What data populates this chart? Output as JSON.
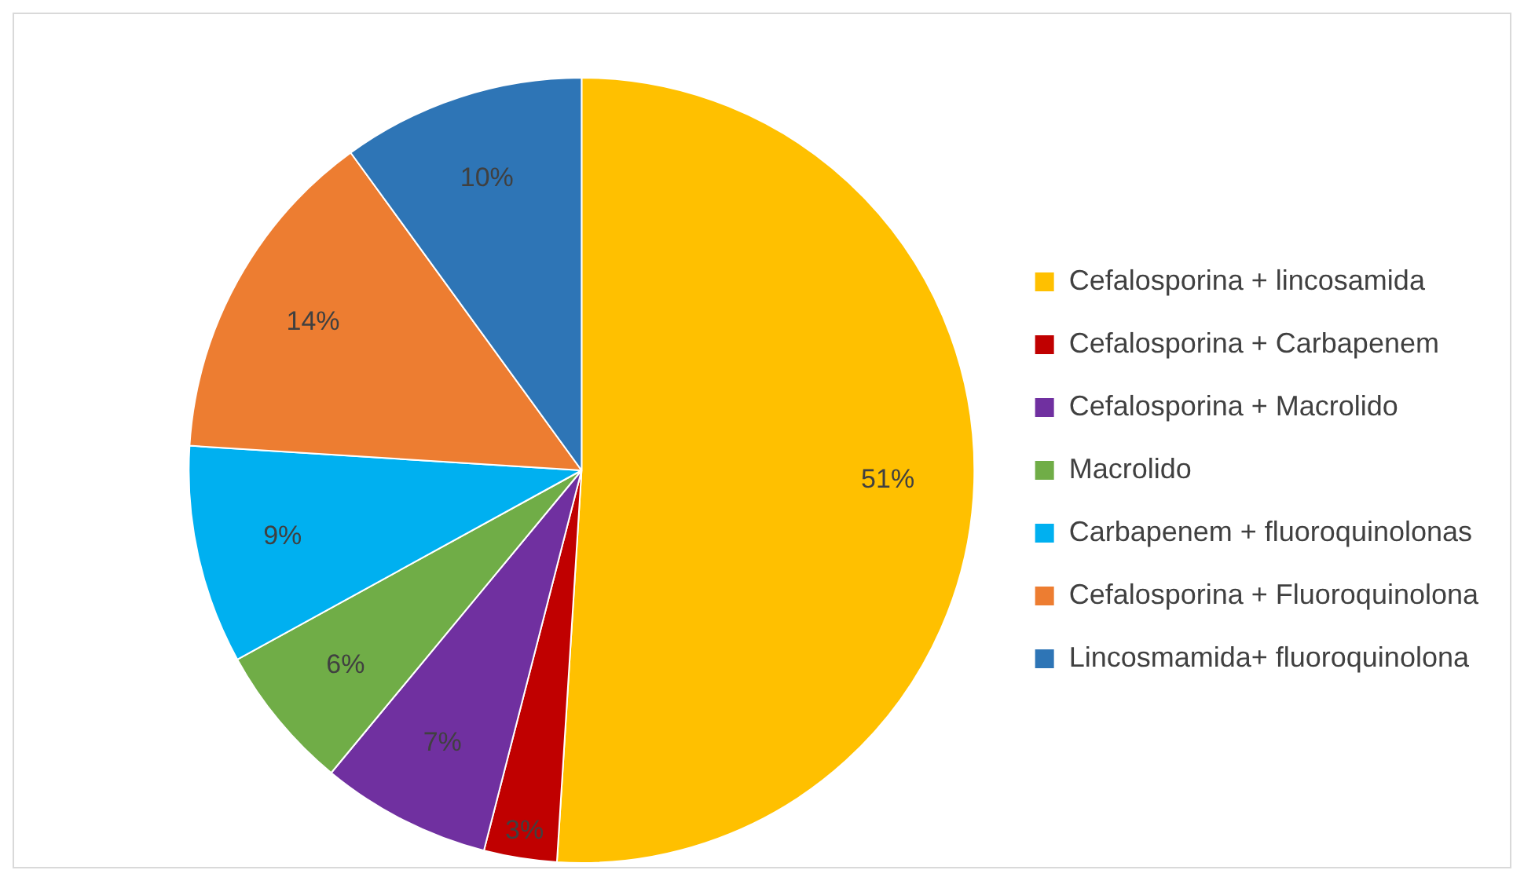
{
  "chart_data": {
    "type": "pie",
    "categories": [
      "Cefalosporina + lincosamida",
      "Cefalosporina + Carbapenem",
      "Cefalosporina + Macrolido",
      "Macrolido",
      "Carbapenem + fluoroquinolonas",
      "Cefalosporina + Fluoroquinolona",
      "Lincosmamida+ fluoroquinolona"
    ],
    "values": [
      51,
      3,
      7,
      6,
      9,
      14,
      10
    ],
    "value_labels": [
      "51%",
      "3%",
      "7%",
      "6%",
      "9%",
      "14%",
      "10%"
    ],
    "colors": [
      "#ffc000",
      "#c00000",
      "#7030a0",
      "#70ad47",
      "#00b0f0",
      "#ed7d31",
      "#2e75b6"
    ],
    "legend": "right"
  }
}
